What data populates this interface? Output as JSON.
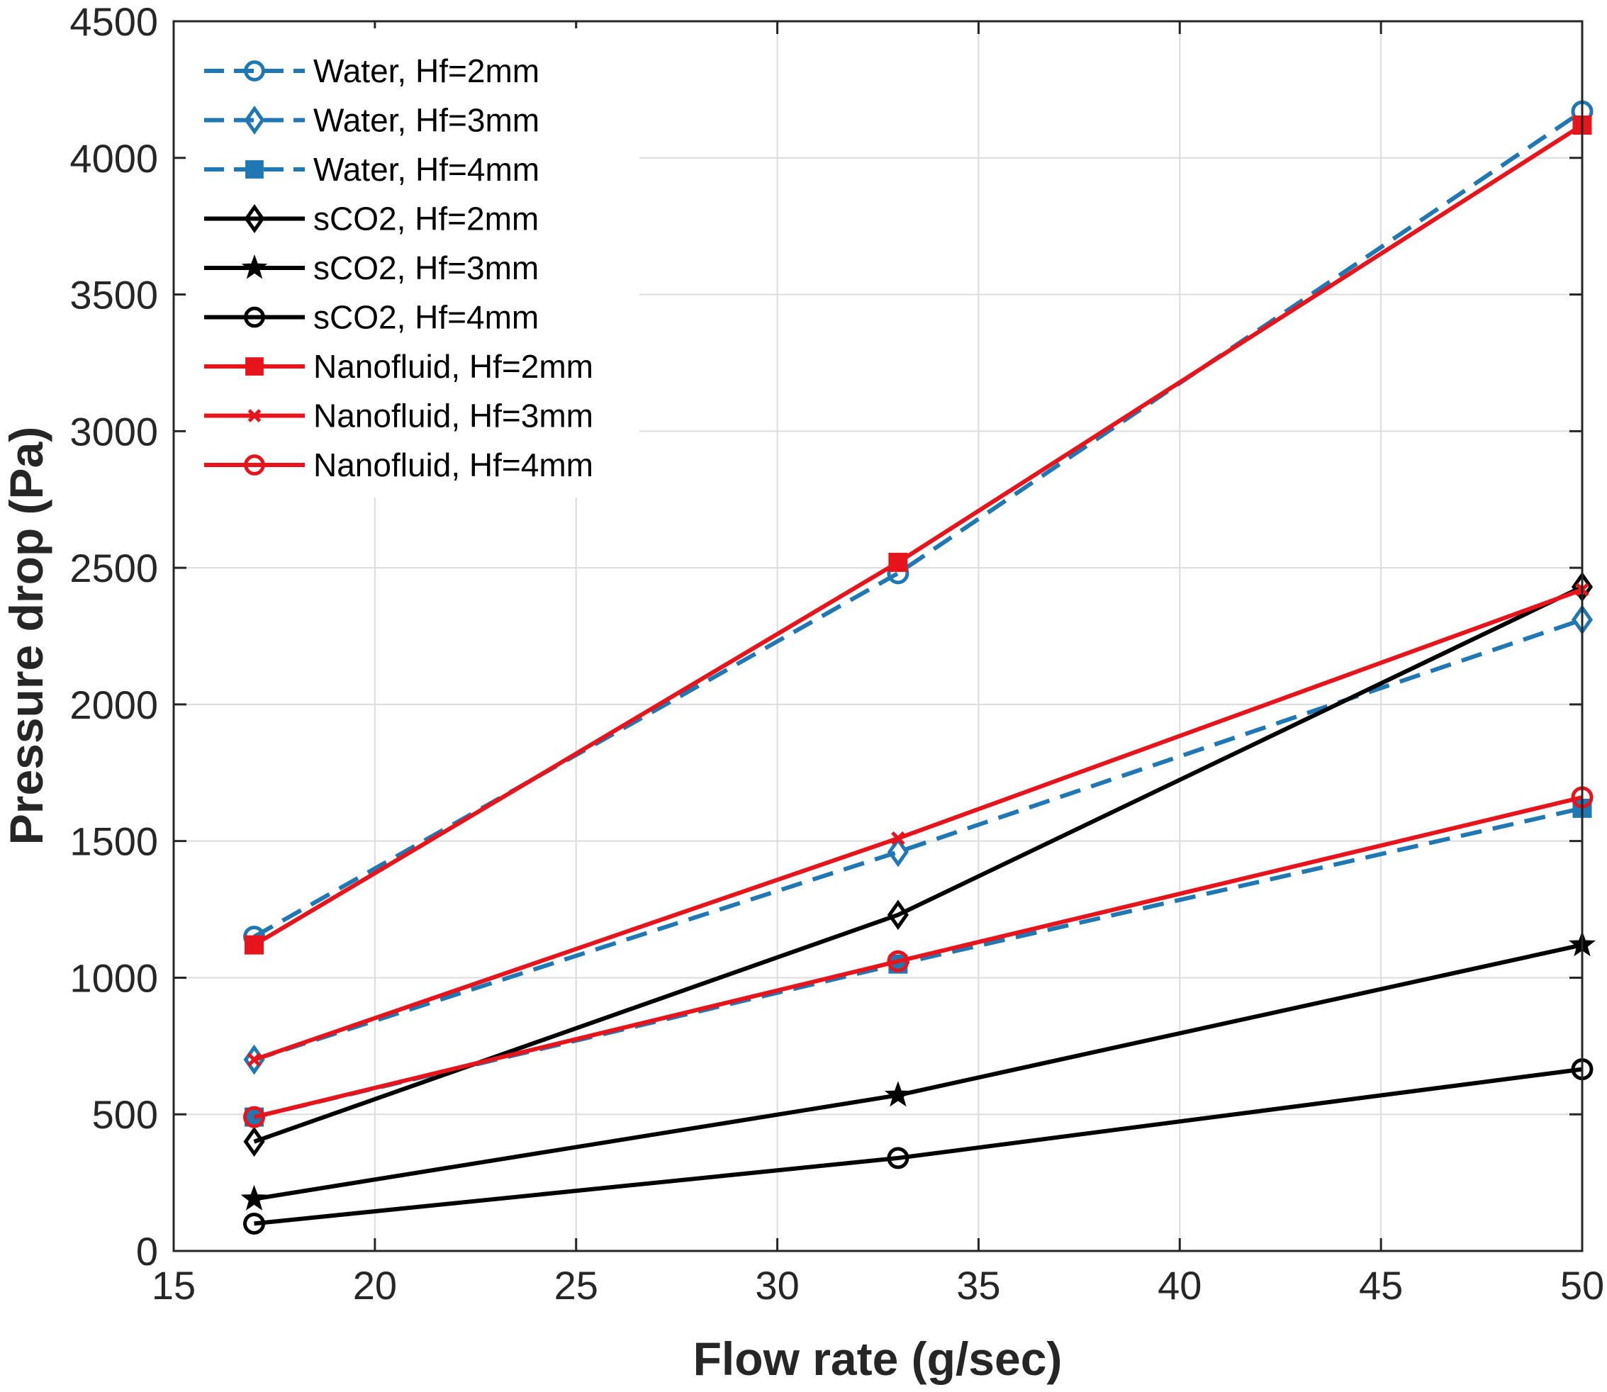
{
  "chart_data": {
    "type": "line",
    "title": "",
    "xlabel": "Flow rate (g/sec)",
    "ylabel": "Pressure drop (Pa)",
    "xlim": [
      15,
      50
    ],
    "ylim": [
      0,
      4500
    ],
    "xticks": [
      15,
      20,
      25,
      30,
      35,
      40,
      45,
      50
    ],
    "yticks": [
      0,
      500,
      1000,
      1500,
      2000,
      2500,
      3000,
      3500,
      4000,
      4500
    ],
    "grid": true,
    "legend_position": "top-left",
    "x": [
      17,
      33,
      50
    ],
    "series": [
      {
        "name": "Water, Hf=2mm",
        "values": [
          1150,
          2480,
          4170
        ],
        "color": "#1f77b4",
        "dash": "dashed",
        "marker": "circle"
      },
      {
        "name": "Water, Hf=3mm",
        "values": [
          700,
          1460,
          2310
        ],
        "color": "#1f77b4",
        "dash": "dashed",
        "marker": "diamond"
      },
      {
        "name": "Water, Hf=4mm",
        "values": [
          490,
          1050,
          1620
        ],
        "color": "#1f77b4",
        "dash": "dashed",
        "marker": "square-filled"
      },
      {
        "name": "sCO2, Hf=2mm",
        "values": [
          400,
          1230,
          2430
        ],
        "color": "#000000",
        "dash": "solid",
        "marker": "diamond"
      },
      {
        "name": "sCO2, Hf=3mm",
        "values": [
          190,
          570,
          1120
        ],
        "color": "#000000",
        "dash": "solid",
        "marker": "star"
      },
      {
        "name": "sCO2, Hf=4mm",
        "values": [
          100,
          340,
          665
        ],
        "color": "#000000",
        "dash": "solid",
        "marker": "circle"
      },
      {
        "name": "Nanofluid, Hf=2mm",
        "values": [
          1120,
          2520,
          4120
        ],
        "color": "#e8141c",
        "dash": "solid",
        "marker": "square-filled"
      },
      {
        "name": "Nanofluid, Hf=3mm",
        "values": [
          700,
          1510,
          2420
        ],
        "color": "#e8141c",
        "dash": "solid",
        "marker": "x"
      },
      {
        "name": "Nanofluid, Hf=4mm",
        "values": [
          490,
          1060,
          1660
        ],
        "color": "#e8141c",
        "dash": "solid",
        "marker": "circle"
      }
    ]
  }
}
